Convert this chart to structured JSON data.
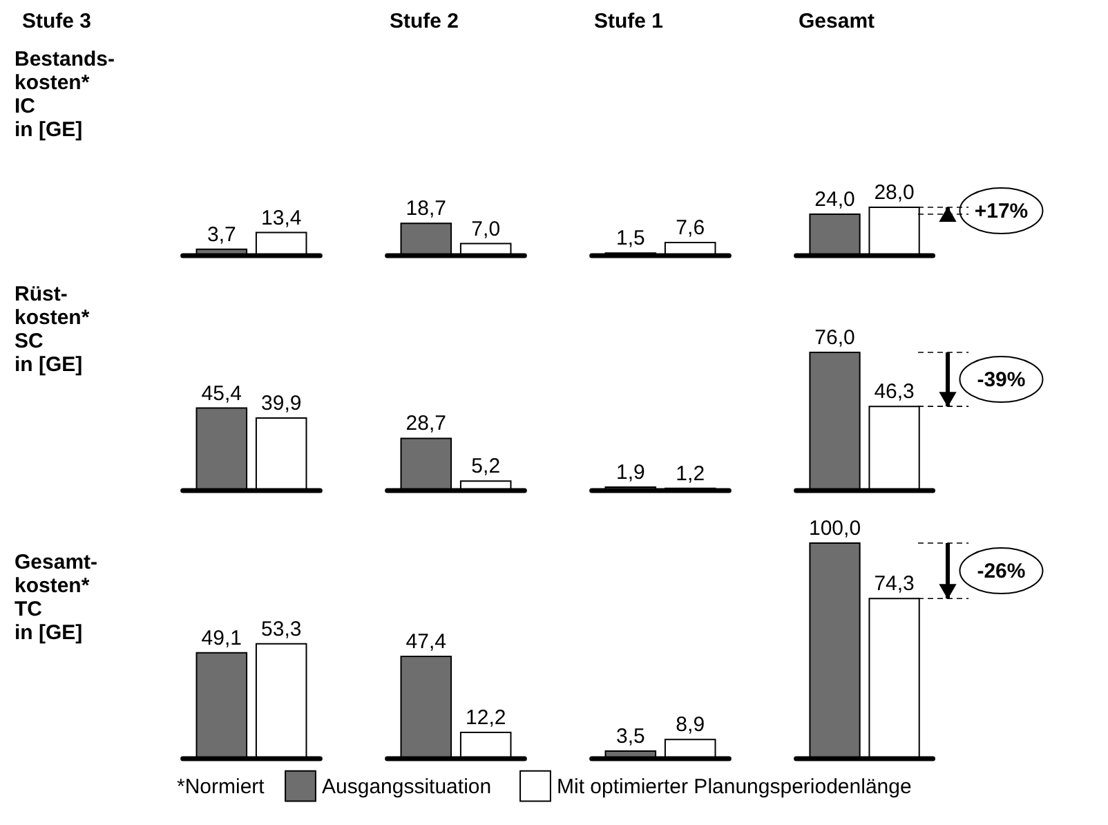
{
  "chart_data": [
    {
      "type": "bar",
      "title": "Stufe 3",
      "ylabel": "Bestands-\nkosten*\nIC\nin [GE]",
      "categories": [
        null
      ],
      "legend": "bottom",
      "series": [
        {
          "name": "Ausgangssituation",
          "color": "#6e6e6e",
          "values": [
            3.7
          ],
          "value_labels": [
            "3,7"
          ]
        },
        {
          "name": "Mit optimierter Planungsperiodenlänge",
          "color": "#ffffff",
          "values": [
            13.4
          ],
          "value_labels": [
            "13,4"
          ]
        }
      ]
    },
    {
      "type": "bar",
      "title": "Stufe 2",
      "categories": [
        null
      ],
      "series": [
        {
          "color": "#6e6e6e",
          "values": [
            18.7
          ],
          "value_labels": [
            "18,7"
          ]
        },
        {
          "color": "#ffffff",
          "values": [
            7.0
          ],
          "value_labels": [
            "7,0"
          ]
        }
      ]
    },
    {
      "type": "bar",
      "title": "Stufe 1",
      "categories": [
        null
      ],
      "series": [
        {
          "color": "#6e6e6e",
          "values": [
            1.5
          ],
          "value_labels": [
            "1,5"
          ]
        },
        {
          "color": "#ffffff",
          "values": [
            7.6
          ],
          "value_labels": [
            "7,6"
          ]
        }
      ]
    },
    {
      "type": "bar",
      "title": "Gesamt",
      "categories": [
        null
      ],
      "annotations": [
        "+17%"
      ],
      "ref_lines": [
        {
          "axis": "y",
          "value": 24.0,
          "line_style": "dashed"
        },
        {
          "axis": "y",
          "value": 28.0,
          "line_style": "dashed"
        }
      ],
      "series": [
        {
          "color": "#6e6e6e",
          "values": [
            24.0
          ],
          "value_labels": [
            "24,0"
          ]
        },
        {
          "color": "#ffffff",
          "values": [
            28.0
          ],
          "value_labels": [
            "28,0"
          ]
        }
      ]
    },
    {
      "type": "bar",
      "ylabel": "Rüst-\nkosten*\nSC\nin [GE]",
      "categories": [
        null
      ],
      "series": [
        {
          "color": "#6e6e6e",
          "values": [
            45.4
          ],
          "value_labels": [
            "45,4"
          ]
        },
        {
          "color": "#ffffff",
          "values": [
            39.9
          ],
          "value_labels": [
            "39,9"
          ]
        }
      ]
    },
    {
      "type": "bar",
      "categories": [
        null
      ],
      "series": [
        {
          "color": "#6e6e6e",
          "values": [
            28.7
          ],
          "value_labels": [
            "28,7"
          ]
        },
        {
          "color": "#ffffff",
          "values": [
            5.2
          ],
          "value_labels": [
            "5,2"
          ]
        }
      ]
    },
    {
      "type": "bar",
      "categories": [
        null
      ],
      "series": [
        {
          "color": "#6e6e6e",
          "values": [
            1.9
          ],
          "value_labels": [
            "1,9"
          ]
        },
        {
          "color": "#ffffff",
          "values": [
            1.2
          ],
          "value_labels": [
            "1,2"
          ]
        }
      ]
    },
    {
      "type": "bar",
      "categories": [
        null
      ],
      "annotations": [
        "-39%"
      ],
      "ref_lines": [
        {
          "axis": "y",
          "value": 76.0,
          "line_style": "dashed"
        },
        {
          "axis": "y",
          "value": 46.3,
          "line_style": "dashed"
        }
      ],
      "series": [
        {
          "color": "#6e6e6e",
          "values": [
            76.0
          ],
          "value_labels": [
            "76,0"
          ]
        },
        {
          "color": "#ffffff",
          "values": [
            46.3
          ],
          "value_labels": [
            "46,3"
          ]
        }
      ]
    },
    {
      "type": "bar",
      "ylabel": "Gesamt-\nkosten*\nTC\nin [GE]",
      "categories": [
        null
      ],
      "annotations": [
        "*Normiert"
      ],
      "series": [
        {
          "color": "#6e6e6e",
          "values": [
            49.1
          ],
          "value_labels": [
            "49,1"
          ]
        },
        {
          "color": "#ffffff",
          "values": [
            53.3
          ],
          "value_labels": [
            "53,3"
          ]
        }
      ]
    },
    {
      "type": "bar",
      "categories": [
        null
      ],
      "series": [
        {
          "color": "#6e6e6e",
          "values": [
            47.4
          ],
          "value_labels": [
            "47,4"
          ]
        },
        {
          "color": "#ffffff",
          "values": [
            12.2
          ],
          "value_labels": [
            "12,2"
          ]
        }
      ]
    },
    {
      "type": "bar",
      "categories": [
        null
      ],
      "series": [
        {
          "color": "#6e6e6e",
          "values": [
            3.5
          ],
          "value_labels": [
            "3,5"
          ]
        },
        {
          "color": "#ffffff",
          "values": [
            8.9
          ],
          "value_labels": [
            "8,9"
          ]
        }
      ]
    },
    {
      "type": "bar",
      "categories": [
        null
      ],
      "annotations": [
        "-26%"
      ],
      "ref_lines": [
        {
          "axis": "y",
          "value": 100.0,
          "line_style": "dashed"
        },
        {
          "axis": "y",
          "value": 74.3,
          "line_style": "dashed"
        }
      ],
      "series": [
        {
          "color": "#6e6e6e",
          "values": [
            100.0
          ],
          "value_labels": [
            "100,0"
          ]
        },
        {
          "color": "#ffffff",
          "values": [
            74.3
          ],
          "value_labels": [
            "74,3"
          ]
        }
      ]
    }
  ]
}
